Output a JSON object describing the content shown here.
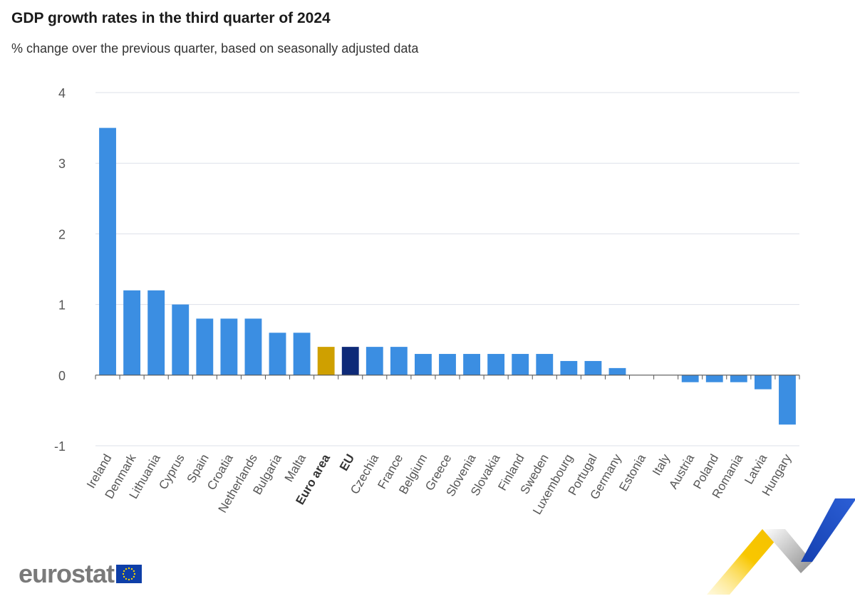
{
  "title": "GDP growth rates in the third quarter of 2024",
  "subtitle": "% change over the previous quarter, based on seasonally adjusted data",
  "logo_text": "eurostat",
  "colors": {
    "country": "#3b8ee2",
    "euro_area": "#cfa000",
    "eu": "#0e2a78",
    "grid": "#dde1ea",
    "axis": "#555555",
    "tick_text": "#555555",
    "label_text": "#555555",
    "highlight_label_text": "#333333"
  },
  "chart_data": {
    "type": "bar",
    "title": "GDP growth rates in the third quarter of 2024",
    "subtitle": "% change over the previous quarter, based on seasonally adjusted data",
    "xlabel": "",
    "ylabel": "",
    "ylim": [
      -1,
      4
    ],
    "yticks": [
      4,
      3,
      2,
      1,
      0,
      -1
    ],
    "grid": true,
    "legend": "none",
    "categories": [
      "Ireland",
      "Denmark",
      "Lithuania",
      "Cyprus",
      "Spain",
      "Croatia",
      "Netherlands",
      "Bulgaria",
      "Malta",
      "Euro area",
      "EU",
      "Czechia",
      "France",
      "Belgium",
      "Greece",
      "Slovenia",
      "Slovakia",
      "Finland",
      "Sweden",
      "Luxembourg",
      "Portugal",
      "Germany",
      "Estonia",
      "Italy",
      "Austria",
      "Poland",
      "Romania",
      "Latvia",
      "Hungary"
    ],
    "values": [
      3.5,
      1.2,
      1.2,
      1.0,
      0.8,
      0.8,
      0.8,
      0.6,
      0.6,
      0.4,
      0.4,
      0.4,
      0.4,
      0.3,
      0.3,
      0.3,
      0.3,
      0.3,
      0.3,
      0.2,
      0.2,
      0.1,
      0.0,
      0.0,
      -0.1,
      -0.1,
      -0.1,
      -0.2,
      -0.7
    ],
    "highlight": {
      "Euro area": "euro_area",
      "EU": "eu"
    }
  }
}
